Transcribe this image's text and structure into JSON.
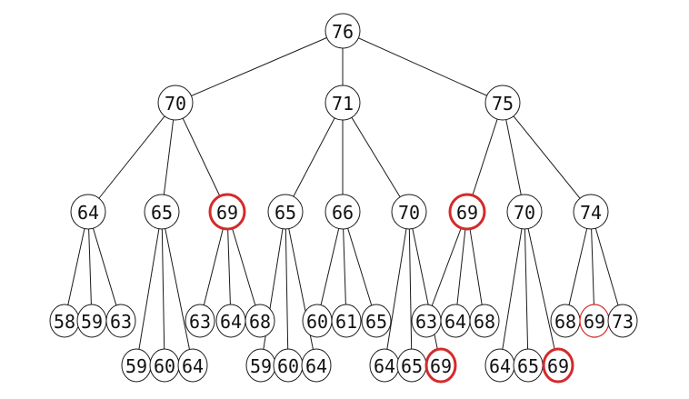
{
  "highlight_color": "#d42a2a",
  "tree": {
    "label": "76",
    "children": [
      {
        "label": "70",
        "children": [
          {
            "label": "64",
            "children": [
              {
                "label": "58"
              },
              {
                "label": "59"
              },
              {
                "label": "63"
              }
            ]
          },
          {
            "label": "65",
            "children": [
              {
                "label": "59"
              },
              {
                "label": "60"
              },
              {
                "label": "64"
              }
            ]
          },
          {
            "label": "69",
            "highlight": "bold",
            "children": [
              {
                "label": "63"
              },
              {
                "label": "64"
              },
              {
                "label": "68"
              }
            ]
          }
        ]
      },
      {
        "label": "71",
        "children": [
          {
            "label": "65",
            "children": [
              {
                "label": "59"
              },
              {
                "label": "60"
              },
              {
                "label": "64"
              }
            ]
          },
          {
            "label": "66",
            "children": [
              {
                "label": "60"
              },
              {
                "label": "61"
              },
              {
                "label": "65"
              }
            ]
          },
          {
            "label": "70",
            "children": [
              {
                "label": "64"
              },
              {
                "label": "65"
              },
              {
                "label": "69",
                "highlight": "bold"
              }
            ]
          }
        ]
      },
      {
        "label": "75",
        "children": [
          {
            "label": "69",
            "highlight": "bold",
            "children": [
              {
                "label": "63"
              },
              {
                "label": "64"
              },
              {
                "label": "68"
              }
            ]
          },
          {
            "label": "70",
            "children": [
              {
                "label": "64"
              },
              {
                "label": "65"
              },
              {
                "label": "69",
                "highlight": "bold"
              }
            ]
          },
          {
            "label": "74",
            "children": [
              {
                "label": "68"
              },
              {
                "label": "69",
                "highlight": "thin"
              },
              {
                "label": "73"
              }
            ]
          }
        ]
      }
    ]
  }
}
